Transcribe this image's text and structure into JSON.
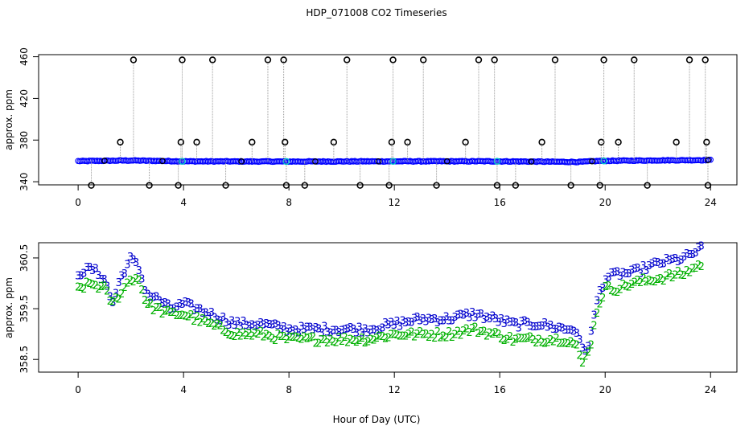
{
  "title": "HDP_071008  CO2 Timeseries",
  "xlabel": "Hour of Day (UTC)",
  "chart_data": [
    {
      "type": "scatter",
      "panel": "top",
      "ylabel": "approx. ppm",
      "xlim": [
        -1.5,
        25
      ],
      "ylim": [
        337,
        462
      ],
      "xticks": [
        "0",
        "4",
        "8",
        "12",
        "16",
        "20",
        "24"
      ],
      "yticks": [
        "340",
        "380",
        "420",
        "460"
      ],
      "baseline": [
        [
          0,
          359.8
        ],
        [
          2,
          360.4
        ],
        [
          4,
          359.6
        ],
        [
          8,
          359.4
        ],
        [
          12,
          359.6
        ],
        [
          16,
          359.6
        ],
        [
          19,
          359.0
        ],
        [
          19.8,
          360.0
        ],
        [
          22,
          360.5
        ],
        [
          24,
          360.8
        ]
      ],
      "flag_colors": {
        "black": "#000000",
        "blue": "#0000ff",
        "cyan": "#00c8c8",
        "drop_line": "#999999"
      },
      "spikes": [
        {
          "x": 0.5,
          "y": 336.5
        },
        {
          "x": 1.6,
          "y": 378
        },
        {
          "x": 2.1,
          "y": 457
        },
        {
          "x": 2.7,
          "y": 336.5
        },
        {
          "x": 3.8,
          "y": 336.5
        },
        {
          "x": 3.9,
          "y": 378
        },
        {
          "x": 3.95,
          "y": 457
        },
        {
          "x": 4.5,
          "y": 378
        },
        {
          "x": 5.1,
          "y": 457
        },
        {
          "x": 5.6,
          "y": 336.5
        },
        {
          "x": 6.6,
          "y": 378
        },
        {
          "x": 7.2,
          "y": 457
        },
        {
          "x": 7.8,
          "y": 457
        },
        {
          "x": 7.85,
          "y": 378
        },
        {
          "x": 7.9,
          "y": 336.5
        },
        {
          "x": 8.6,
          "y": 336.5
        },
        {
          "x": 9.7,
          "y": 378
        },
        {
          "x": 10.2,
          "y": 457
        },
        {
          "x": 10.7,
          "y": 336.5
        },
        {
          "x": 11.8,
          "y": 336.5
        },
        {
          "x": 11.9,
          "y": 378
        },
        {
          "x": 11.95,
          "y": 457
        },
        {
          "x": 12.5,
          "y": 378
        },
        {
          "x": 13.1,
          "y": 457
        },
        {
          "x": 13.6,
          "y": 336.5
        },
        {
          "x": 14.7,
          "y": 378
        },
        {
          "x": 15.2,
          "y": 457
        },
        {
          "x": 15.8,
          "y": 457
        },
        {
          "x": 15.9,
          "y": 336.5
        },
        {
          "x": 16.6,
          "y": 336.5
        },
        {
          "x": 17.6,
          "y": 378
        },
        {
          "x": 18.1,
          "y": 457
        },
        {
          "x": 18.7,
          "y": 336.5
        },
        {
          "x": 19.8,
          "y": 336.5
        },
        {
          "x": 19.85,
          "y": 378
        },
        {
          "x": 19.95,
          "y": 457
        },
        {
          "x": 20.5,
          "y": 378
        },
        {
          "x": 21.1,
          "y": 457
        },
        {
          "x": 21.6,
          "y": 336.5
        },
        {
          "x": 22.7,
          "y": 378
        },
        {
          "x": 23.2,
          "y": 457
        },
        {
          "x": 23.8,
          "y": 457
        },
        {
          "x": 23.85,
          "y": 378
        },
        {
          "x": 23.9,
          "y": 336.5
        }
      ]
    },
    {
      "type": "scatter",
      "panel": "bottom",
      "ylabel": "approx. ppm",
      "xlim": [
        -1.5,
        25
      ],
      "ylim": [
        358.25,
        360.8
      ],
      "xticks": [
        "0",
        "4",
        "8",
        "12",
        "16",
        "20",
        "24"
      ],
      "yticks": [
        "358.5",
        "359.5",
        "360.5"
      ],
      "series": [
        {
          "marker": "3",
          "color": "#0000cd",
          "values": [
            [
              0,
              360.2
            ],
            [
              0.5,
              360.3
            ],
            [
              1.0,
              360.1
            ],
            [
              1.3,
              359.6
            ],
            [
              1.6,
              360.1
            ],
            [
              2.0,
              360.5
            ],
            [
              2.3,
              360.3
            ],
            [
              2.6,
              359.8
            ],
            [
              3.0,
              359.7
            ],
            [
              3.5,
              359.5
            ],
            [
              4.0,
              359.6
            ],
            [
              5.0,
              359.4
            ],
            [
              6.0,
              359.2
            ],
            [
              7.0,
              359.2
            ],
            [
              8.0,
              359.1
            ],
            [
              9.0,
              359.1
            ],
            [
              10.0,
              359.1
            ],
            [
              11.0,
              359.1
            ],
            [
              12.0,
              359.2
            ],
            [
              13.0,
              359.3
            ],
            [
              14.0,
              359.3
            ],
            [
              15.0,
              359.4
            ],
            [
              15.8,
              359.3
            ],
            [
              16.5,
              359.2
            ],
            [
              17.5,
              359.2
            ],
            [
              18.5,
              359.1
            ],
            [
              18.9,
              359.1
            ],
            [
              19.1,
              358.7
            ],
            [
              19.3,
              358.7
            ],
            [
              19.5,
              359.1
            ],
            [
              19.7,
              359.7
            ],
            [
              20.0,
              360.1
            ],
            [
              20.5,
              360.2
            ],
            [
              21.0,
              360.2
            ],
            [
              22.0,
              360.4
            ],
            [
              23.0,
              360.5
            ],
            [
              23.7,
              360.7
            ]
          ]
        },
        {
          "marker": "2",
          "color": "#00b000",
          "values": [
            [
              0,
              359.9
            ],
            [
              0.5,
              360.0
            ],
            [
              1.0,
              359.9
            ],
            [
              1.3,
              359.6
            ],
            [
              1.6,
              359.8
            ],
            [
              2.0,
              360.1
            ],
            [
              2.3,
              360.1
            ],
            [
              2.6,
              359.6
            ],
            [
              3.0,
              359.5
            ],
            [
              3.5,
              359.4
            ],
            [
              4.0,
              359.4
            ],
            [
              5.0,
              359.2
            ],
            [
              6.0,
              359.0
            ],
            [
              7.0,
              359.0
            ],
            [
              8.0,
              358.9
            ],
            [
              9.0,
              358.9
            ],
            [
              10.0,
              358.9
            ],
            [
              11.0,
              358.9
            ],
            [
              12.0,
              359.0
            ],
            [
              13.0,
              359.0
            ],
            [
              14.0,
              359.0
            ],
            [
              15.0,
              359.1
            ],
            [
              15.8,
              359.0
            ],
            [
              16.5,
              358.9
            ],
            [
              17.5,
              358.9
            ],
            [
              18.5,
              358.9
            ],
            [
              18.9,
              358.8
            ],
            [
              19.1,
              358.4
            ],
            [
              19.3,
              358.6
            ],
            [
              19.5,
              358.9
            ],
            [
              19.7,
              359.5
            ],
            [
              20.0,
              359.9
            ],
            [
              20.5,
              359.9
            ],
            [
              21.0,
              360.0
            ],
            [
              22.0,
              360.1
            ],
            [
              23.0,
              360.2
            ],
            [
              23.7,
              360.4
            ]
          ]
        }
      ]
    }
  ]
}
